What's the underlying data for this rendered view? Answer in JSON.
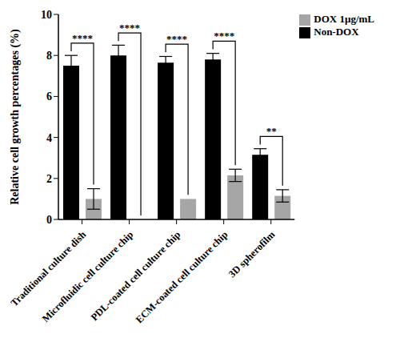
{
  "chart_data": {
    "type": "bar",
    "y_label": "Relative cell growth percentages (%)",
    "categories": [
      "Traditional culture dish",
      "Microfluidic cell culture chip",
      "PDL-coated cell culture chip",
      "ECM-coated cell culture chip",
      "3D spherofilm"
    ],
    "series": [
      {
        "name": "Non-DOX",
        "color": "#000000",
        "values": [
          7.5,
          8.0,
          7.65,
          7.8,
          3.15
        ],
        "errors": [
          0.5,
          0.5,
          0.3,
          0.3,
          0.3
        ]
      },
      {
        "name": "DOX 1µg/mL",
        "color": "#a6a6a6",
        "values": [
          1.0,
          0,
          1.0,
          2.15,
          1.15
        ],
        "errors": [
          0.5,
          0,
          0,
          0.3,
          0.3
        ]
      }
    ],
    "annotations": [
      "****",
      "****",
      "****",
      "****",
      "**"
    ],
    "ylim": [
      0,
      10
    ],
    "yticks": [
      0,
      2,
      4,
      6,
      8,
      10
    ],
    "grid": false,
    "legend": "top-right"
  }
}
